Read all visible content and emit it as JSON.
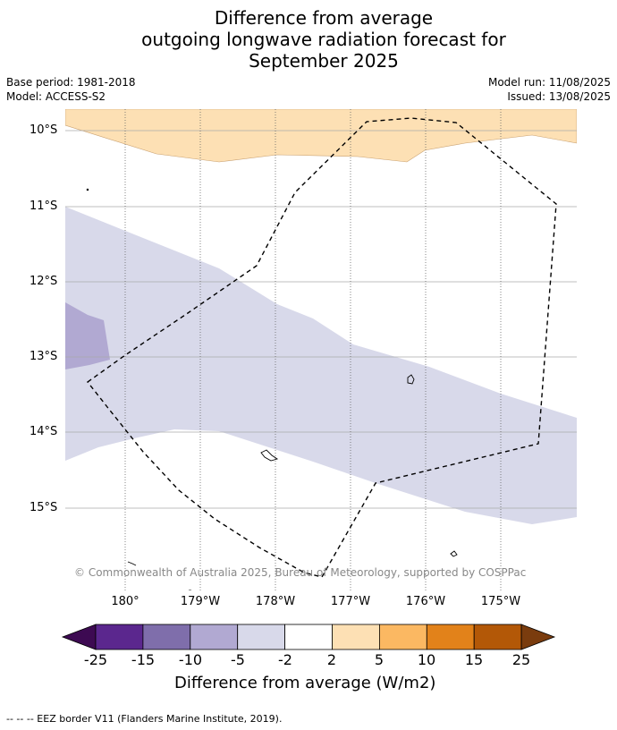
{
  "title": {
    "line1": "Difference from average",
    "line2": "outgoing longwave radiation forecast for",
    "line3": "September 2025"
  },
  "meta": {
    "base_period": "Base period: 1981-2018",
    "model": "Model: ACCESS-S2",
    "model_run": "Model run: 11/08/2025",
    "issued": "Issued: 13/08/2025"
  },
  "map": {
    "lat_labels": [
      "10°S",
      "11°S",
      "12°S",
      "13°S",
      "14°S",
      "15°S"
    ],
    "lon_labels": [
      "180°",
      "179°W",
      "178°W",
      "177°W",
      "176°W",
      "175°W"
    ],
    "copyright": "© Commonwealth of Australia 2025, Bureau of Meteorology, supported by COSPPac",
    "colors": {
      "light_orange": "#fde0b4",
      "light_purple": "#d8d9ea",
      "medium_purple": "#b1a9d2"
    }
  },
  "colorbar": {
    "ticks": [
      "-25",
      "-15",
      "-10",
      "-5",
      "-2",
      "2",
      "5",
      "10",
      "15",
      "25"
    ],
    "colors": [
      "#3d0a52",
      "#5b278e",
      "#7f6eab",
      "#b1a9d2",
      "#d8d9ea",
      "#ffffff",
      "#fde0b4",
      "#fbb862",
      "#e2821a",
      "#b35807",
      "#7a3c0e"
    ],
    "label": "Difference from average (W/m2)"
  },
  "footer": "-- -- -- EEZ border V11 (Flanders Marine Institute, 2019)."
}
